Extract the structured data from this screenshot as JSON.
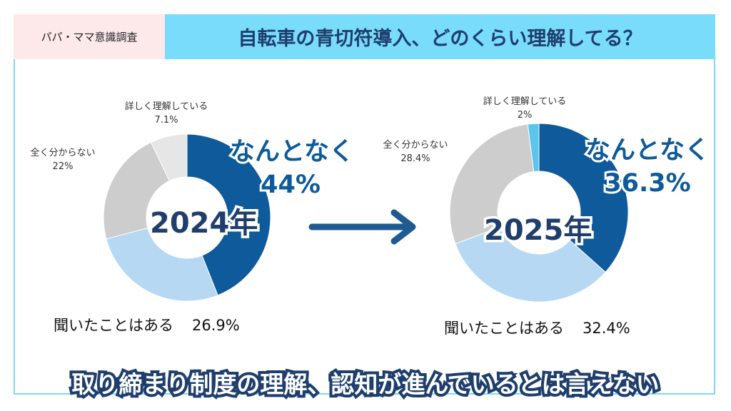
{
  "header": {
    "tag": "パパ・ママ意識調査",
    "title": "自転車の青切符導入、どのくらい理解してる？"
  },
  "colors": {
    "somewhat": "#0e5a9a",
    "heard": "#b6d8f2",
    "none": "#cdcdcd",
    "detailed_2024": "#e6e6e6",
    "detailed_2025": "#5bc6ec",
    "arrow": "#1f5a92"
  },
  "chart_data": [
    {
      "type": "pie",
      "variant": "donut",
      "year_label": "2024年",
      "categories": [
        "なんとなく",
        "聞いたことはある",
        "全く分からない",
        "詳しく理解している"
      ],
      "values": [
        44,
        26.9,
        22,
        7.1
      ],
      "value_labels": [
        "44%",
        "26.9%",
        "22%",
        "7.1%"
      ],
      "callout": {
        "label": "なんとなく",
        "value": "44%"
      },
      "heard_label": {
        "label": "聞いたことはある",
        "value": "26.9%"
      },
      "none_label": {
        "label": "全く分からない",
        "value": "22%"
      },
      "detailed_label": {
        "label": "詳しく理解している",
        "value": "7.1%"
      }
    },
    {
      "type": "pie",
      "variant": "donut",
      "year_label": "2025年",
      "categories": [
        "なんとなく",
        "聞いたことはある",
        "全く分からない",
        "詳しく理解している"
      ],
      "values": [
        36.3,
        32.4,
        28.4,
        2
      ],
      "value_labels": [
        "36.3%",
        "32.4%",
        "28.4%",
        "2%"
      ],
      "callout": {
        "label": "なんとなく",
        "value": "36.3%"
      },
      "heard_label": {
        "label": "聞いたことはある",
        "value": "32.4%"
      },
      "none_label": {
        "label": "全く分からない",
        "value": "28.4%"
      },
      "detailed_label": {
        "label": "詳しく理解している",
        "value": "2%"
      }
    }
  ],
  "footer": {
    "conclusion": "取り締まり制度の理解、認知が進んでいるとは言えない"
  }
}
